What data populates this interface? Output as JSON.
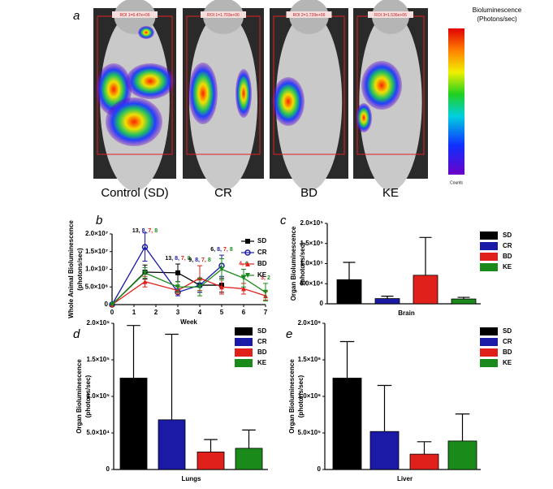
{
  "panel_a": {
    "letter": "a",
    "images": [
      {
        "label": "Control (SD)",
        "roi": "ROI 1=6.47e+06"
      },
      {
        "label": "CR",
        "roi": "ROI 1=1.703e+06"
      },
      {
        "label": "BD",
        "roi": "ROI 2=1.739e+06"
      },
      {
        "label": "KE",
        "roi": "ROI 3=1.536e+06"
      }
    ],
    "colorbar_title": [
      "Bioluminescence",
      "(Photons/sec)"
    ],
    "colorbar_unit": "Counts"
  },
  "chart_data": [
    {
      "type": "line",
      "letter": "b",
      "xlabel": "Week",
      "ylabel": [
        "Whole Animal Bioluminescence",
        "(photons/sec)"
      ],
      "x": [
        0,
        1.5,
        3,
        4,
        5,
        6,
        7
      ],
      "xlim": [
        0,
        7
      ],
      "xticks": [
        0,
        1,
        2,
        3,
        4,
        5,
        6,
        7
      ],
      "ylim": [
        0,
        20000000
      ],
      "yticks": [
        0,
        {
          "value": 5000000,
          "label": "5.0×10⁶"
        },
        {
          "value": 10000000,
          "label": "1.0×10⁷"
        },
        {
          "value": 15000000,
          "label": "1.5×10⁷"
        },
        {
          "value": 20000000,
          "label": "2.0×10⁷"
        }
      ],
      "series": [
        {
          "name": "SD",
          "color": "#000000",
          "marker": "square",
          "values": [
            0,
            9200000,
            9000000,
            5500000,
            5500000,
            null,
            null
          ],
          "errors": [
            0,
            2000000,
            2500000,
            2000000,
            2000000,
            null,
            null
          ]
        },
        {
          "name": "CR",
          "color": "#1a1aa6",
          "marker": "circle",
          "values": [
            0,
            16300000,
            3500000,
            5500000,
            11000000,
            null,
            null
          ],
          "errors": [
            0,
            4000000,
            1000000,
            2000000,
            3000000,
            null,
            null
          ]
        },
        {
          "name": "BD",
          "color": "#e0201b",
          "marker": "triangle-up",
          "values": [
            0,
            6500000,
            4000000,
            7500000,
            5000000,
            4500000,
            2500000
          ],
          "errors": [
            0,
            1500000,
            1000000,
            3500000,
            2000000,
            1500000,
            1200000
          ]
        },
        {
          "name": "KE",
          "color": "#1a8a1a",
          "marker": "triangle-down",
          "values": [
            0,
            9000000,
            5000000,
            5000000,
            10000000,
            7500000,
            3500000
          ],
          "errors": [
            0,
            1500000,
            1500000,
            2500000,
            3000000,
            2500000,
            2500000
          ]
        }
      ],
      "annotations": [
        {
          "x": 1.5,
          "parts": [
            {
              "text": "13,",
              "color": "#000000"
            },
            {
              "text": "8,",
              "color": "#1a1aa6"
            },
            {
              "text": "7,",
              "color": "#e0201b"
            },
            {
              "text": "8",
              "color": "#1a8a1a"
            }
          ]
        },
        {
          "x": 3,
          "parts": [
            {
              "text": "13,",
              "color": "#000000"
            },
            {
              "text": "8,",
              "color": "#1a1aa6"
            },
            {
              "text": "7,",
              "color": "#e0201b"
            },
            {
              "text": "8",
              "color": "#1a8a1a"
            }
          ]
        },
        {
          "x": 4,
          "parts": [
            {
              "text": "9,",
              "color": "#000000"
            },
            {
              "text": "8,",
              "color": "#1a1aa6"
            },
            {
              "text": "7,",
              "color": "#e0201b"
            },
            {
              "text": "8",
              "color": "#1a8a1a"
            }
          ]
        },
        {
          "x": 5,
          "parts": [
            {
              "text": "6,",
              "color": "#000000"
            },
            {
              "text": "8,",
              "color": "#1a1aa6"
            },
            {
              "text": "7,",
              "color": "#e0201b"
            },
            {
              "text": "8",
              "color": "#1a8a1a"
            }
          ]
        },
        {
          "x": 6,
          "parts": [
            {
              "text": "4,",
              "color": "#e0201b"
            },
            {
              "text": "6",
              "color": "#1a8a1a"
            }
          ]
        },
        {
          "x": 7,
          "parts": [
            {
              "text": "3,",
              "color": "#e0201b"
            },
            {
              "text": "2",
              "color": "#1a8a1a"
            }
          ]
        }
      ],
      "legend": "upper right"
    },
    {
      "type": "bar",
      "letter": "c",
      "xlabel": "Brain",
      "ylabel": [
        "Organ Bioluminescence",
        "(photons/sec)"
      ],
      "categories": [
        "SD",
        "CR",
        "BD",
        "KE"
      ],
      "colors": [
        "#000000",
        "#1a1aa6",
        "#e0201b",
        "#1a8a1a"
      ],
      "values": [
        60000,
        13000,
        71000,
        12000
      ],
      "errors": [
        43000,
        6000,
        94000,
        4000
      ],
      "ylim": [
        0,
        200000
      ],
      "yticks": [
        0,
        {
          "value": 50000,
          "label": "5.0×10⁴"
        },
        {
          "value": 100000,
          "label": "1.0×10⁵"
        },
        {
          "value": 150000,
          "label": "1.5×10⁵"
        },
        {
          "value": 200000,
          "label": "2.0×10⁵"
        }
      ],
      "legend": "upper right"
    },
    {
      "type": "bar",
      "letter": "d",
      "xlabel": "Lungs",
      "ylabel": [
        "Organ Bioluminescence",
        "(photons/sec)"
      ],
      "categories": [
        "SD",
        "CR",
        "BD",
        "KE"
      ],
      "colors": [
        "#000000",
        "#1a1aa6",
        "#e0201b",
        "#1a8a1a"
      ],
      "values": [
        125000,
        68000,
        24000,
        29000
      ],
      "errors": [
        72000,
        117000,
        17000,
        25000
      ],
      "ylim": [
        0,
        200000
      ],
      "yticks": [
        0,
        {
          "value": 50000,
          "label": "5.0×10⁴"
        },
        {
          "value": 100000,
          "label": "1.0×10⁵"
        },
        {
          "value": 150000,
          "label": "1.5×10⁵"
        },
        {
          "value": 200000,
          "label": "2.0×10⁵"
        }
      ],
      "legend": "upper right"
    },
    {
      "type": "bar",
      "letter": "e",
      "xlabel": "Liver",
      "ylabel": [
        "Organ Bioluminescence",
        "(photons/sec)"
      ],
      "categories": [
        "SD",
        "CR",
        "BD",
        "KE"
      ],
      "colors": [
        "#000000",
        "#1a1aa6",
        "#e0201b",
        "#1a8a1a"
      ],
      "values": [
        1250000,
        520000,
        210000,
        390000
      ],
      "errors": [
        500000,
        630000,
        170000,
        370000
      ],
      "ylim": [
        0,
        2000000
      ],
      "yticks": [
        0,
        {
          "value": 500000,
          "label": "5.0×10⁵"
        },
        {
          "value": 1000000,
          "label": "1.0×10⁶"
        },
        {
          "value": 1500000,
          "label": "1.5×10⁶"
        },
        {
          "value": 2000000,
          "label": "2.0×10⁶"
        }
      ],
      "legend": "upper right"
    }
  ]
}
